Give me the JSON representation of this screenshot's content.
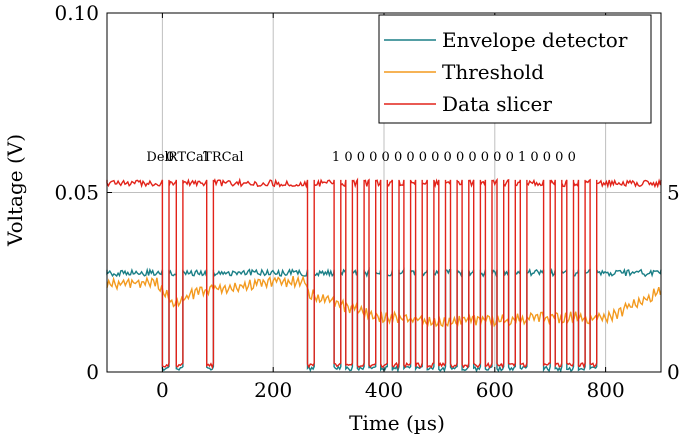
{
  "chart_data": {
    "type": "line",
    "title": "",
    "xlabel": "Time (µs)",
    "ylabel": "Voltage (V)",
    "xlim": [
      -100,
      900
    ],
    "ylim": [
      0,
      0.1
    ],
    "xticks": [
      0,
      200,
      400,
      600,
      800
    ],
    "yticks": [
      0,
      0.05,
      0.1
    ],
    "ytick_labels": [
      "0",
      "0.05",
      "0.10"
    ],
    "right_tick_labels": [
      "5",
      "0"
    ],
    "grid": true,
    "legend_position": "top-right",
    "colors": {
      "envelope": "#1a7f86",
      "threshold": "#f39a1f",
      "slicer": "#e2231a",
      "grid": "#bfbfbf"
    },
    "annotation_segments": [
      "Del.",
      "0",
      "RTCal",
      "TRCal"
    ],
    "annotation_bits": "1 0 0 0 0 0 0 0 0 0 0 0 0 0 0 1 0 0 0 0",
    "series": [
      {
        "name": "Envelope detector",
        "levels": {
          "high": 0.0285,
          "low": 0.0015
        },
        "low_intervals_us": [
          [
            0,
            12
          ],
          [
            25,
            37
          ],
          [
            80,
            92
          ],
          [
            262,
            274
          ],
          [
            310,
            322
          ],
          [
            331,
            343
          ],
          [
            352,
            364
          ],
          [
            373,
            385
          ],
          [
            394,
            406
          ],
          [
            415,
            427
          ],
          [
            436,
            448
          ],
          [
            457,
            469
          ],
          [
            478,
            490
          ],
          [
            499,
            511
          ],
          [
            520,
            532
          ],
          [
            541,
            553
          ],
          [
            562,
            574
          ],
          [
            583,
            595
          ],
          [
            604,
            616
          ],
          [
            625,
            637
          ],
          [
            646,
            658
          ],
          [
            688,
            700
          ],
          [
            709,
            721
          ],
          [
            730,
            742
          ],
          [
            751,
            763
          ],
          [
            772,
            784
          ]
        ]
      },
      {
        "name": "Threshold",
        "x": [
          -100,
          -10,
          20,
          60,
          120,
          200,
          260,
          262,
          330,
          400,
          480,
          560,
          640,
          700,
          760,
          800,
          900
        ],
        "y": [
          0.0255,
          0.0255,
          0.02,
          0.023,
          0.0245,
          0.026,
          0.026,
          0.023,
          0.019,
          0.016,
          0.015,
          0.015,
          0.0155,
          0.016,
          0.016,
          0.0155,
          0.0235
        ]
      },
      {
        "name": "Data slicer",
        "levels": {
          "high": 0.0535,
          "low": 0.0025
        },
        "low_intervals_us": [
          [
            0,
            12
          ],
          [
            25,
            37
          ],
          [
            80,
            92
          ],
          [
            262,
            274
          ],
          [
            310,
            322
          ],
          [
            331,
            343
          ],
          [
            352,
            364
          ],
          [
            373,
            385
          ],
          [
            394,
            406
          ],
          [
            415,
            427
          ],
          [
            436,
            448
          ],
          [
            457,
            469
          ],
          [
            478,
            490
          ],
          [
            499,
            511
          ],
          [
            520,
            532
          ],
          [
            541,
            553
          ],
          [
            562,
            574
          ],
          [
            583,
            595
          ],
          [
            604,
            616
          ],
          [
            625,
            637
          ],
          [
            646,
            658
          ],
          [
            688,
            700
          ],
          [
            709,
            721
          ],
          [
            730,
            742
          ],
          [
            751,
            763
          ],
          [
            772,
            784
          ]
        ]
      }
    ]
  }
}
